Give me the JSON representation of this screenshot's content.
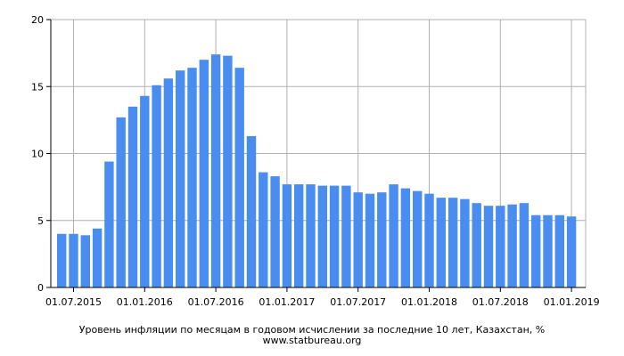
{
  "chart_data": {
    "type": "bar",
    "title": "Уровень инфляции по месяцам в годовом исчислении за последние 10 лет, Казахстан, %",
    "subtitle": "www.statbureau.org",
    "xlabel": "",
    "ylabel": "",
    "ylim": [
      0,
      20
    ],
    "yticks": [
      "0",
      "5",
      "10",
      "15",
      "20"
    ],
    "xticks": [
      "01.07.2015",
      "01.01.2016",
      "01.07.2016",
      "01.01.2017",
      "01.07.2017",
      "01.01.2018",
      "01.07.2018",
      "01.01.2019"
    ],
    "grid": true,
    "legend": "none",
    "bar_color": "#4a8df0",
    "categories": [
      "2015-06",
      "2015-07",
      "2015-08",
      "2015-09",
      "2015-10",
      "2015-11",
      "2015-12",
      "2016-01",
      "2016-02",
      "2016-03",
      "2016-04",
      "2016-05",
      "2016-06",
      "2016-07",
      "2016-08",
      "2016-09",
      "2016-10",
      "2016-11",
      "2016-12",
      "2017-01",
      "2017-02",
      "2017-03",
      "2017-04",
      "2017-05",
      "2017-06",
      "2017-07",
      "2017-08",
      "2017-09",
      "2017-10",
      "2017-11",
      "2017-12",
      "2018-01",
      "2018-02",
      "2018-03",
      "2018-04",
      "2018-05",
      "2018-06",
      "2018-07",
      "2018-08",
      "2018-09",
      "2018-10",
      "2018-11",
      "2018-12",
      "2019-01"
    ],
    "values": [
      4.0,
      4.0,
      3.9,
      4.4,
      9.4,
      12.7,
      13.5,
      14.3,
      15.1,
      15.6,
      16.2,
      16.4,
      17.0,
      17.4,
      17.3,
      16.4,
      11.3,
      8.6,
      8.3,
      7.7,
      7.7,
      7.7,
      7.6,
      7.6,
      7.6,
      7.1,
      7.0,
      7.1,
      7.7,
      7.4,
      7.2,
      7.0,
      6.7,
      6.7,
      6.6,
      6.3,
      6.1,
      6.1,
      6.2,
      6.3,
      5.4,
      5.4,
      5.4,
      5.3
    ]
  }
}
